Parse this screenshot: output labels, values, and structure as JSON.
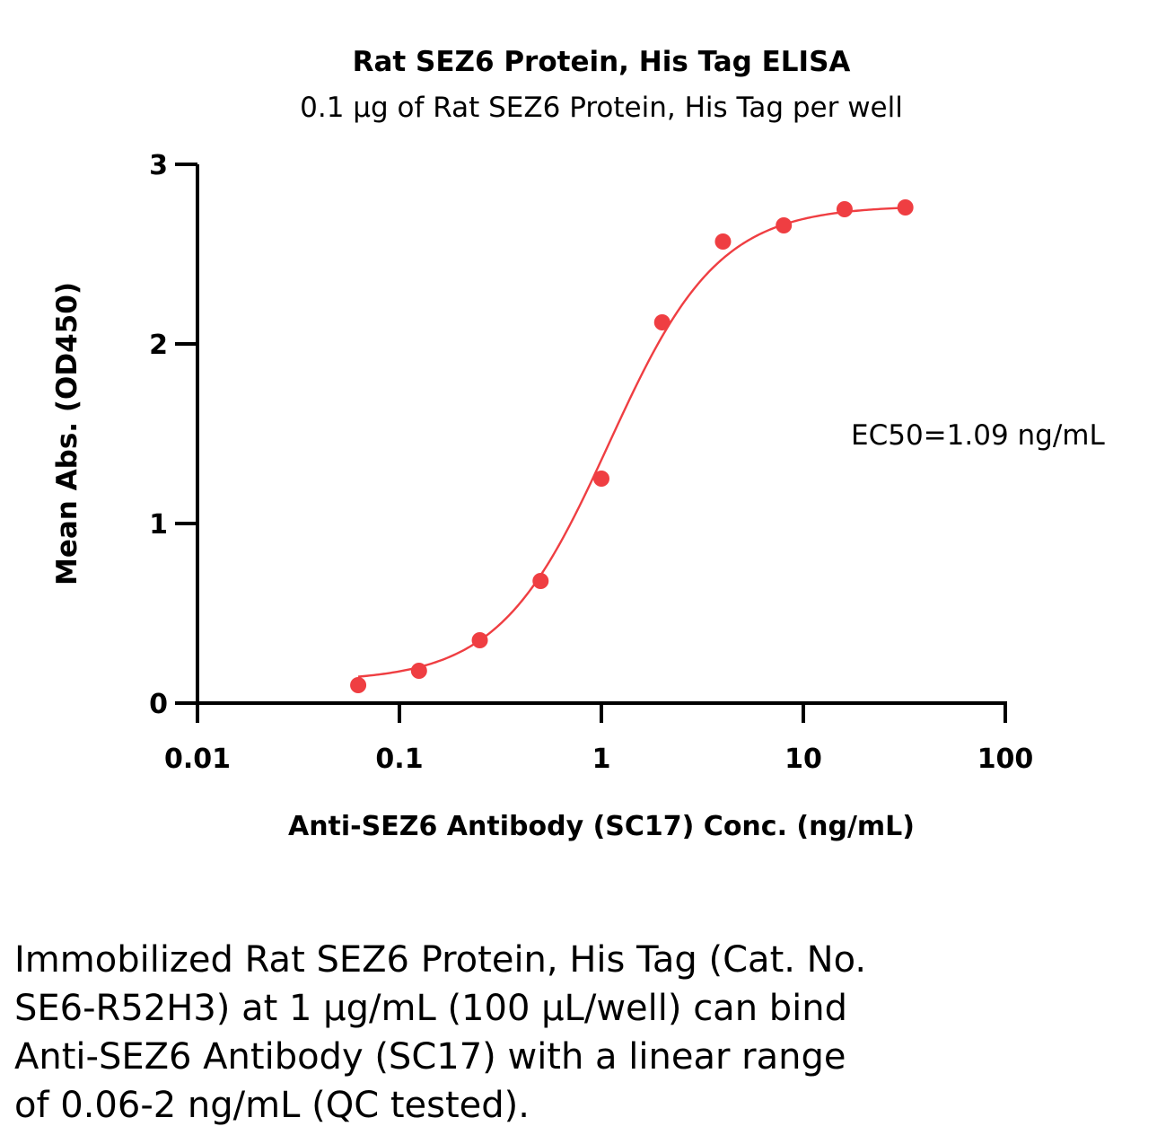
{
  "chart_data": {
    "type": "scatter",
    "title": "Rat SEZ6 Protein, His Tag ELISA",
    "subtitle": "0.1 µg of Rat SEZ6 Protein, His Tag per well",
    "xlabel": "Anti-SEZ6 Antibody (SC17) Conc. (ng/mL)",
    "ylabel": "Mean Abs. (OD450)",
    "x_scale": "log",
    "xlim": [
      0.01,
      100
    ],
    "ylim": [
      0,
      3
    ],
    "x_ticks": [
      0.01,
      0.1,
      1,
      10,
      100
    ],
    "x_tick_labels": [
      "0.01",
      "0.1",
      "1",
      "10",
      "100"
    ],
    "y_ticks": [
      0,
      1,
      2,
      3
    ],
    "y_tick_labels": [
      "0",
      "1",
      "2",
      "3"
    ],
    "grid": false,
    "series": [
      {
        "name": "Anti-SEZ6 Antibody (SC17)",
        "color": "#EF3E42",
        "x": [
          0.0625,
          0.125,
          0.25,
          0.5,
          1,
          2,
          4,
          8,
          16,
          32
        ],
        "y": [
          0.1,
          0.18,
          0.35,
          0.68,
          1.25,
          2.12,
          2.57,
          2.66,
          2.75,
          2.76
        ]
      }
    ],
    "fit": {
      "model": "4PL",
      "bottom": 0.12,
      "top": 2.77,
      "ec50": 1.09,
      "hill": 1.6,
      "x_range": [
        0.0625,
        32
      ]
    },
    "annotation": "EC50=1.09 ng/mL"
  },
  "caption": {
    "lines": [
      "Immobilized Rat SEZ6 Protein, His Tag (Cat. No.",
      "SE6-R52H3) at 1 µg/mL (100 µL/well) can bind",
      "Anti-SEZ6 Antibody (SC17) with a linear range",
      "of 0.06-2 ng/mL (QC tested)."
    ]
  }
}
